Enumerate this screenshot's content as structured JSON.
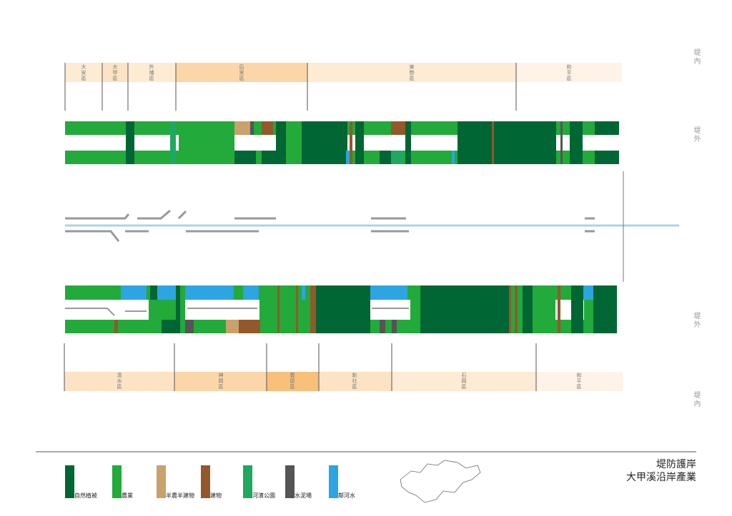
{
  "side_labels": {
    "top_inner": "堤內",
    "top_outer": "堤外",
    "bottom_outer": "堤外",
    "bottom_inner": "堤內"
  },
  "north_districts": [
    "大安區",
    "大甲區",
    "外埔區",
    "后里區",
    "東勢區",
    "和平區"
  ],
  "south_districts": [
    "清水區",
    "神岡區",
    "豐原區",
    "新社區",
    "石岡區",
    "和平區"
  ],
  "legend": [
    {
      "label": "自然植被",
      "color": "#006633"
    },
    {
      "label": "農業",
      "color": "#22AA3A"
    },
    {
      "label": "半農半建物",
      "color": "#C8A26A"
    },
    {
      "label": "建物",
      "color": "#93582C"
    },
    {
      "label": "河濱公園",
      "color": "#1FA860"
    },
    {
      "label": "水泥場",
      "color": "#555555"
    },
    {
      "label": "鄰河水",
      "color": "#2CA5E0"
    }
  ],
  "title": {
    "line1": "堤防護岸",
    "line2": "大甲溪沿岸產業"
  }
}
